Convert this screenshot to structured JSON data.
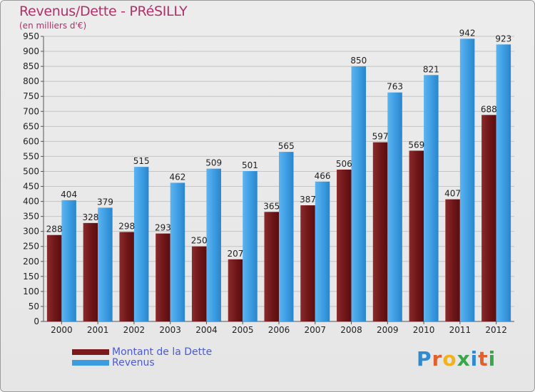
{
  "chart_data": {
    "type": "bar",
    "title": "Revenus/Dette - PRéSILLY",
    "subtitle": "(en milliers d'€)",
    "xlabel": "",
    "ylabel": "",
    "categories": [
      "2000",
      "2001",
      "2002",
      "2003",
      "2004",
      "2005",
      "2006",
      "2007",
      "2008",
      "2009",
      "2010",
      "2011",
      "2012"
    ],
    "series": [
      {
        "name": "Montant de la Dette",
        "color": "#7a1a1d",
        "values": [
          288,
          328,
          298,
          293,
          250,
          207,
          365,
          387,
          506,
          597,
          569,
          407,
          688
        ]
      },
      {
        "name": "Revenus",
        "color": "#3d9be0",
        "values": [
          404,
          379,
          515,
          462,
          509,
          501,
          565,
          466,
          850,
          763,
          821,
          942,
          923
        ]
      }
    ],
    "ylim": [
      0,
      950
    ],
    "ytick_step": 50,
    "ytick_labels": [
      "0",
      "50",
      "100",
      "150",
      "200",
      "250",
      "300",
      "350",
      "400",
      "450",
      "500",
      "550",
      "600",
      "650",
      "700",
      "750",
      "800",
      "850",
      "900",
      "950"
    ],
    "grid": true,
    "legend_position": "bottom-left"
  },
  "brand": {
    "letters": [
      "P",
      "r",
      "o",
      "x",
      "i",
      "t",
      "i"
    ],
    "colors": [
      "#2f8ad1",
      "#e0622a",
      "#f2b21c",
      "#3aa54a",
      "#2f8ad1",
      "#e0622a",
      "#3aa54a"
    ]
  }
}
